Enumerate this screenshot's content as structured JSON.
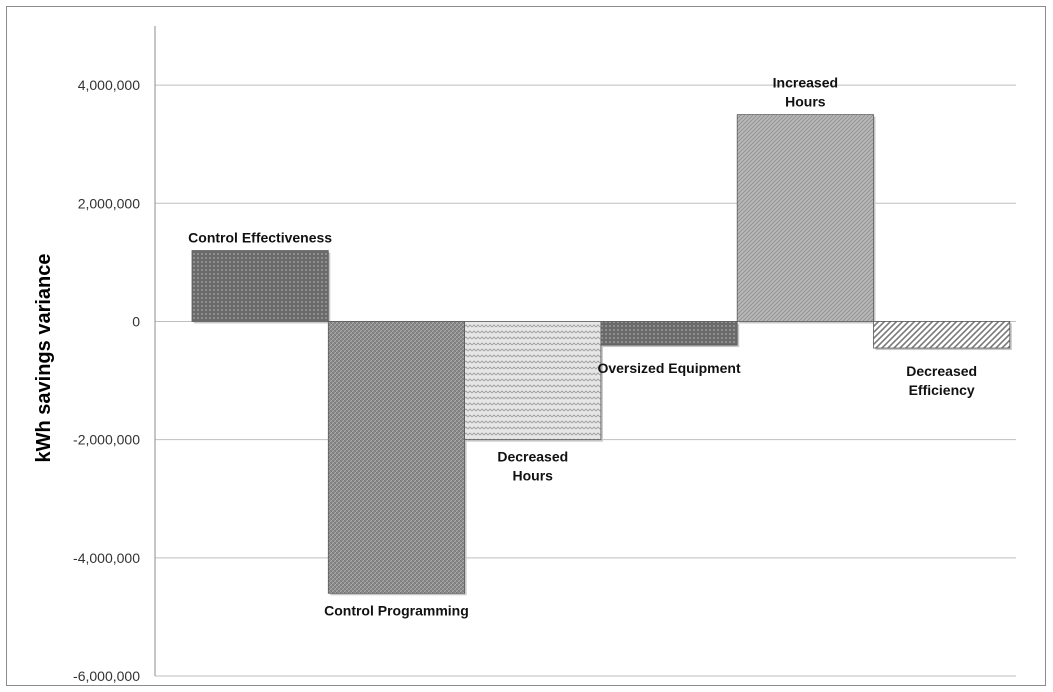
{
  "chart_data": {
    "type": "bar",
    "ylabel": "kWh savings variance",
    "ylim": [
      -6000000,
      5000000
    ],
    "yticks": [
      -6000000,
      -4000000,
      -2000000,
      0,
      2000000,
      4000000
    ],
    "ytick_labels": [
      "-6,000,000",
      "-4,000,000",
      "-2,000,000",
      "0",
      "2,000,000",
      "4,000,000"
    ],
    "grid": true,
    "bars": [
      {
        "label_lines": [
          "Control Effectiveness"
        ],
        "value": 1200000,
        "fill": "#787878",
        "pattern": "dots"
      },
      {
        "label_lines": [
          "Control Programming"
        ],
        "value": -4600000,
        "fill": "#8f8f8f",
        "pattern": "fine-weave"
      },
      {
        "label_lines": [
          "Decreased",
          "Hours"
        ],
        "value": -2000000,
        "fill": "#d9d9d9",
        "pattern": "zigzag"
      },
      {
        "label_lines": [
          "Oversized Equipment"
        ],
        "value": -400000,
        "fill": "#707070",
        "pattern": "dots"
      },
      {
        "label_lines": [
          "Increased",
          "Hours"
        ],
        "value": 3500000,
        "fill": "#b0b0b0",
        "pattern": "diagonal-fine"
      },
      {
        "label_lines": [
          "Decreased",
          "Efficiency"
        ],
        "value": -450000,
        "fill": "#ffffff",
        "pattern": "diagonal-hatch"
      }
    ]
  }
}
